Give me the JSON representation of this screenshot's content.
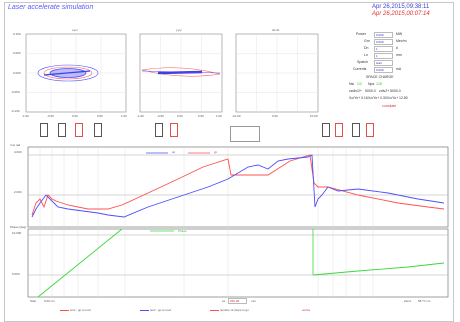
{
  "header": {
    "title": "Laser accelerate simulation",
    "date_blue": "Apr 26,2015,09:38:11",
    "date_red": "Apr 26,2015,00:07:14"
  },
  "mini_plots": [
    {
      "title": "x-px",
      "y_ticks": [
        "0.100",
        "0.050",
        "0.000",
        "-0.050",
        "-0.100"
      ],
      "x_ticks": [
        "-1.00",
        "-0.50",
        "0.00",
        "0.50",
        "1.00"
      ]
    },
    {
      "title": "y-py",
      "y_ticks": [
        "0.100",
        "0.050",
        "0.000",
        "-0.050",
        "-0.100"
      ],
      "x_ticks": [
        "-1.00",
        "-0.50",
        "0.00",
        "0.50",
        "1.00"
      ]
    },
    {
      "title": "dz-dz",
      "y_ticks": [
        "0.100",
        "0.050",
        "0.000",
        "-0.050",
        "-0.100"
      ],
      "x_ticks": [
        "-10.00",
        "-5.00",
        "0.00",
        "5.00",
        "10.00"
      ]
    }
  ],
  "params": {
    "power_label": "Power",
    "power_value": "0.000",
    "power_unit": "MW",
    "gm_label": "Gm",
    "gm_value": "0.000",
    "gm_unit": "Mev/m",
    "dn_label": "Dn",
    "dn_value": "1",
    "dn_unit": "#",
    "ln_label": "Ln",
    "ln_value": "1",
    "ln_unit": "mm",
    "spatch_label": "Spatch",
    "spatch_value": "start",
    "current_label": "Currents",
    "current_value": "0.000",
    "current_unit": "mA",
    "space_charge": "SPACE CHARGE",
    "nsl_label": "Nsl",
    "nsl_value": "1/2",
    "nps_label": "Nps",
    "nps_value": "128",
    "zdiv_label": "zzdiv/2+",
    "zdiv_value": "5000.0",
    "zdiv2_label": "zdiv2+",
    "zdiv2_value": "5000.0",
    "xy_label": "Xo/Yo+",
    "xy_value": "0.16",
    "xy2_label": "Xo/Yo+",
    "xy2_value": "0.30",
    "xy3_label": "Xo/Yo+",
    "xy3_value": "12.80",
    "cumulate": "cumulate"
  },
  "plot_main": {
    "ylabel": "rms rad",
    "y_ticks": [
      "4.000",
      "2.000"
    ],
    "legend": [
      "xp",
      "yp"
    ]
  },
  "plot_phase": {
    "ylabel": "Phase (deg)",
    "y_ticks": [
      "10.000",
      "5.000"
    ],
    "legend": "Phase"
  },
  "footer": {
    "start": "Start",
    "start_val": "0.00 cm",
    "mid_label": "ps",
    "mid_val": "260.28",
    "mid_unit": "mm",
    "end": "Zend",
    "end_val": "68.77 cm",
    "legend1": "xo/s : go to end",
    "legend2": "next : go to next",
    "legend3": "number of steps to go",
    "legend4": "ws/ws"
  },
  "colors": {
    "blue": "#4d4dff",
    "red": "#ff5050",
    "green": "#3ad83a",
    "grid": "#cfcfcf"
  }
}
